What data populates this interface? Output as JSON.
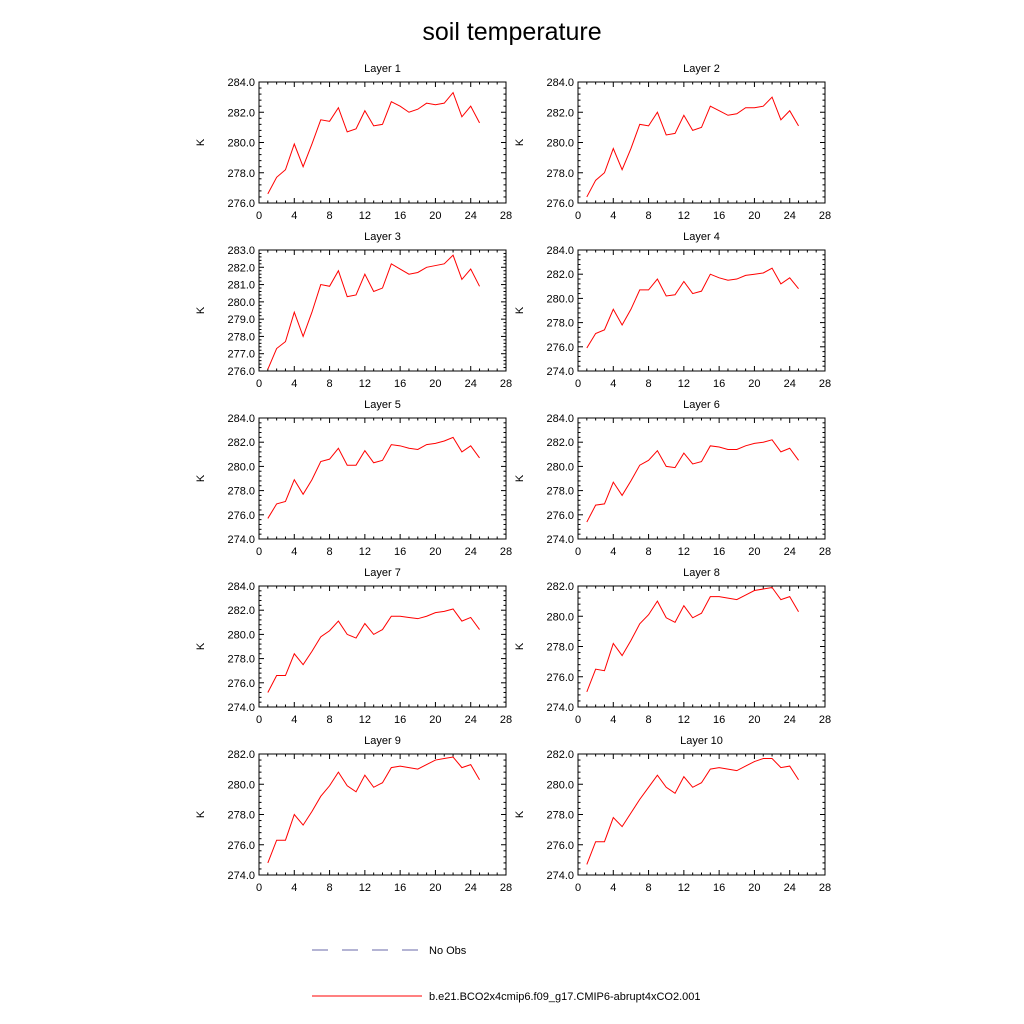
{
  "title": "soil temperature",
  "colors": {
    "model_line": "#ff0000",
    "obs_line": "#6a6aa8",
    "axis": "#000000"
  },
  "legend": [
    {
      "label": "No Obs",
      "style": "dashed",
      "color": "#6a6aa8"
    },
    {
      "label": "b.e21.BCO2x4cmip6.f09_g17.CMIP6-abrupt4xCO2.001",
      "style": "solid",
      "color": "#ff0000"
    }
  ],
  "chart_data": [
    {
      "type": "line",
      "title": "Layer 1",
      "ylabel": "K",
      "xlim": [
        0,
        28
      ],
      "ylim": [
        276,
        284
      ],
      "xticks": [
        "0",
        "4",
        "8",
        "12",
        "16",
        "20",
        "24",
        "28"
      ],
      "yticks": [
        "276.0",
        "278.0",
        "280.0",
        "282.0",
        "284.0"
      ],
      "x": [
        1,
        2,
        3,
        4,
        5,
        6,
        7,
        8,
        9,
        10,
        11,
        12,
        13,
        14,
        15,
        16,
        17,
        18,
        19,
        20,
        21,
        22,
        23,
        24,
        25
      ],
      "series": [
        {
          "values": [
            276.6,
            277.7,
            278.2,
            279.9,
            278.4,
            279.9,
            281.5,
            281.4,
            282.3,
            280.7,
            280.9,
            282.1,
            281.1,
            281.2,
            282.7,
            282.4,
            282.0,
            282.2,
            282.6,
            282.5,
            282.6,
            283.3,
            281.7,
            282.4,
            281.3
          ]
        }
      ]
    },
    {
      "type": "line",
      "title": "Layer 2",
      "ylabel": "K",
      "xlim": [
        0,
        28
      ],
      "ylim": [
        276,
        284
      ],
      "xticks": [
        "0",
        "4",
        "8",
        "12",
        "16",
        "20",
        "24",
        "28"
      ],
      "yticks": [
        "276.0",
        "278.0",
        "280.0",
        "282.0",
        "284.0"
      ],
      "x": [
        1,
        2,
        3,
        4,
        5,
        6,
        7,
        8,
        9,
        10,
        11,
        12,
        13,
        14,
        15,
        16,
        17,
        18,
        19,
        20,
        21,
        22,
        23,
        24,
        25
      ],
      "series": [
        {
          "values": [
            276.4,
            277.5,
            278.0,
            279.6,
            278.2,
            279.6,
            281.2,
            281.1,
            282.0,
            280.5,
            280.6,
            281.8,
            280.8,
            281.0,
            282.4,
            282.1,
            281.8,
            281.9,
            282.3,
            282.3,
            282.4,
            283.0,
            281.5,
            282.1,
            281.1
          ]
        }
      ]
    },
    {
      "type": "line",
      "title": "Layer 3",
      "ylabel": "K",
      "xlim": [
        0,
        28
      ],
      "ylim": [
        276,
        283
      ],
      "xticks": [
        "0",
        "4",
        "8",
        "12",
        "16",
        "20",
        "24",
        "28"
      ],
      "yticks": [
        "276.0",
        "277.0",
        "278.0",
        "279.0",
        "280.0",
        "281.0",
        "282.0",
        "283.0"
      ],
      "x": [
        1,
        2,
        3,
        4,
        5,
        6,
        7,
        8,
        9,
        10,
        11,
        12,
        13,
        14,
        15,
        16,
        17,
        18,
        19,
        20,
        21,
        22,
        23,
        24,
        25
      ],
      "series": [
        {
          "values": [
            276.1,
            277.3,
            277.7,
            279.4,
            278.0,
            279.4,
            281.0,
            280.9,
            281.8,
            280.3,
            280.4,
            281.6,
            280.6,
            280.8,
            282.2,
            281.9,
            281.6,
            281.7,
            282.0,
            282.1,
            282.2,
            282.7,
            281.3,
            281.9,
            280.9
          ]
        }
      ]
    },
    {
      "type": "line",
      "title": "Layer 4",
      "ylabel": "K",
      "xlim": [
        0,
        28
      ],
      "ylim": [
        274,
        284
      ],
      "xticks": [
        "0",
        "4",
        "8",
        "12",
        "16",
        "20",
        "24",
        "28"
      ],
      "yticks": [
        "274.0",
        "276.0",
        "278.0",
        "280.0",
        "282.0",
        "284.0"
      ],
      "x": [
        1,
        2,
        3,
        4,
        5,
        6,
        7,
        8,
        9,
        10,
        11,
        12,
        13,
        14,
        15,
        16,
        17,
        18,
        19,
        20,
        21,
        22,
        23,
        24,
        25
      ],
      "series": [
        {
          "values": [
            275.9,
            277.1,
            277.4,
            279.1,
            277.8,
            279.1,
            280.7,
            280.7,
            281.6,
            280.2,
            280.3,
            281.4,
            280.4,
            280.6,
            282.0,
            281.7,
            281.5,
            281.6,
            281.9,
            282.0,
            282.1,
            282.5,
            281.2,
            281.7,
            280.8
          ]
        }
      ]
    },
    {
      "type": "line",
      "title": "Layer 5",
      "ylabel": "K",
      "xlim": [
        0,
        28
      ],
      "ylim": [
        274,
        284
      ],
      "xticks": [
        "0",
        "4",
        "8",
        "12",
        "16",
        "20",
        "24",
        "28"
      ],
      "yticks": [
        "274.0",
        "276.0",
        "278.0",
        "280.0",
        "282.0",
        "284.0"
      ],
      "x": [
        1,
        2,
        3,
        4,
        5,
        6,
        7,
        8,
        9,
        10,
        11,
        12,
        13,
        14,
        15,
        16,
        17,
        18,
        19,
        20,
        21,
        22,
        23,
        24,
        25
      ],
      "series": [
        {
          "values": [
            275.7,
            276.9,
            277.1,
            278.9,
            277.7,
            278.9,
            280.4,
            280.6,
            281.5,
            280.1,
            280.1,
            281.3,
            280.3,
            280.5,
            281.8,
            281.7,
            281.5,
            281.4,
            281.8,
            281.9,
            282.1,
            282.4,
            281.2,
            281.7,
            280.7
          ]
        }
      ]
    },
    {
      "type": "line",
      "title": "Layer 6",
      "ylabel": "K",
      "xlim": [
        0,
        28
      ],
      "ylim": [
        274,
        284
      ],
      "xticks": [
        "0",
        "4",
        "8",
        "12",
        "16",
        "20",
        "24",
        "28"
      ],
      "yticks": [
        "274.0",
        "276.0",
        "278.0",
        "280.0",
        "282.0",
        "284.0"
      ],
      "x": [
        1,
        2,
        3,
        4,
        5,
        6,
        7,
        8,
        9,
        10,
        11,
        12,
        13,
        14,
        15,
        16,
        17,
        18,
        19,
        20,
        21,
        22,
        23,
        24,
        25
      ],
      "series": [
        {
          "values": [
            275.4,
            276.8,
            276.9,
            278.7,
            277.6,
            278.8,
            280.1,
            280.5,
            281.3,
            280.0,
            279.9,
            281.1,
            280.2,
            280.4,
            281.7,
            281.6,
            281.4,
            281.4,
            281.7,
            281.9,
            282.0,
            282.2,
            281.2,
            281.5,
            280.5
          ]
        }
      ]
    },
    {
      "type": "line",
      "title": "Layer 7",
      "ylabel": "K",
      "xlim": [
        0,
        28
      ],
      "ylim": [
        274,
        284
      ],
      "xticks": [
        "0",
        "4",
        "8",
        "12",
        "16",
        "20",
        "24",
        "28"
      ],
      "yticks": [
        "274.0",
        "276.0",
        "278.0",
        "280.0",
        "282.0",
        "284.0"
      ],
      "x": [
        1,
        2,
        3,
        4,
        5,
        6,
        7,
        8,
        9,
        10,
        11,
        12,
        13,
        14,
        15,
        16,
        17,
        18,
        19,
        20,
        21,
        22,
        23,
        24,
        25
      ],
      "series": [
        {
          "values": [
            275.2,
            276.6,
            276.6,
            278.4,
            277.5,
            278.6,
            279.8,
            280.3,
            281.1,
            280.0,
            279.7,
            280.9,
            280.0,
            280.4,
            281.5,
            281.5,
            281.4,
            281.3,
            281.5,
            281.8,
            281.9,
            282.1,
            281.1,
            281.4,
            280.4
          ]
        }
      ]
    },
    {
      "type": "line",
      "title": "Layer 8",
      "ylabel": "K",
      "xlim": [
        0,
        28
      ],
      "ylim": [
        274,
        282
      ],
      "xticks": [
        "0",
        "4",
        "8",
        "12",
        "16",
        "20",
        "24",
        "28"
      ],
      "yticks": [
        "274.0",
        "276.0",
        "278.0",
        "280.0",
        "282.0"
      ],
      "x": [
        1,
        2,
        3,
        4,
        5,
        6,
        7,
        8,
        9,
        10,
        11,
        12,
        13,
        14,
        15,
        16,
        17,
        18,
        19,
        20,
        21,
        22,
        23,
        24,
        25
      ],
      "series": [
        {
          "values": [
            275.0,
            276.5,
            276.4,
            278.2,
            277.4,
            278.4,
            279.5,
            280.1,
            281.0,
            279.9,
            279.6,
            280.7,
            279.9,
            280.2,
            281.3,
            281.3,
            281.2,
            281.1,
            281.4,
            281.7,
            281.8,
            281.9,
            281.1,
            281.3,
            280.3
          ]
        }
      ]
    },
    {
      "type": "line",
      "title": "Layer 9",
      "ylabel": "K",
      "xlim": [
        0,
        28
      ],
      "ylim": [
        274,
        282
      ],
      "xticks": [
        "0",
        "4",
        "8",
        "12",
        "16",
        "20",
        "24",
        "28"
      ],
      "yticks": [
        "274.0",
        "276.0",
        "278.0",
        "280.0",
        "282.0"
      ],
      "x": [
        1,
        2,
        3,
        4,
        5,
        6,
        7,
        8,
        9,
        10,
        11,
        12,
        13,
        14,
        15,
        16,
        17,
        18,
        19,
        20,
        21,
        22,
        23,
        24,
        25
      ],
      "series": [
        {
          "values": [
            274.8,
            276.3,
            276.3,
            278.0,
            277.3,
            278.2,
            279.2,
            279.9,
            280.8,
            279.9,
            279.5,
            280.6,
            279.8,
            280.1,
            281.1,
            281.2,
            281.1,
            281.0,
            281.3,
            281.6,
            281.7,
            281.8,
            281.1,
            281.3,
            280.3
          ]
        }
      ]
    },
    {
      "type": "line",
      "title": "Layer 10",
      "ylabel": "K",
      "xlim": [
        0,
        28
      ],
      "ylim": [
        274,
        282
      ],
      "xticks": [
        "0",
        "4",
        "8",
        "12",
        "16",
        "20",
        "24",
        "28"
      ],
      "yticks": [
        "274.0",
        "276.0",
        "278.0",
        "280.0",
        "282.0"
      ],
      "x": [
        1,
        2,
        3,
        4,
        5,
        6,
        7,
        8,
        9,
        10,
        11,
        12,
        13,
        14,
        15,
        16,
        17,
        18,
        19,
        20,
        21,
        22,
        23,
        24,
        25
      ],
      "series": [
        {
          "values": [
            274.7,
            276.2,
            276.2,
            277.8,
            277.2,
            278.1,
            279.0,
            279.8,
            280.6,
            279.8,
            279.4,
            280.5,
            279.8,
            280.1,
            281.0,
            281.1,
            281.0,
            280.9,
            281.2,
            281.5,
            281.7,
            281.7,
            281.1,
            281.2,
            280.3
          ]
        }
      ]
    }
  ]
}
